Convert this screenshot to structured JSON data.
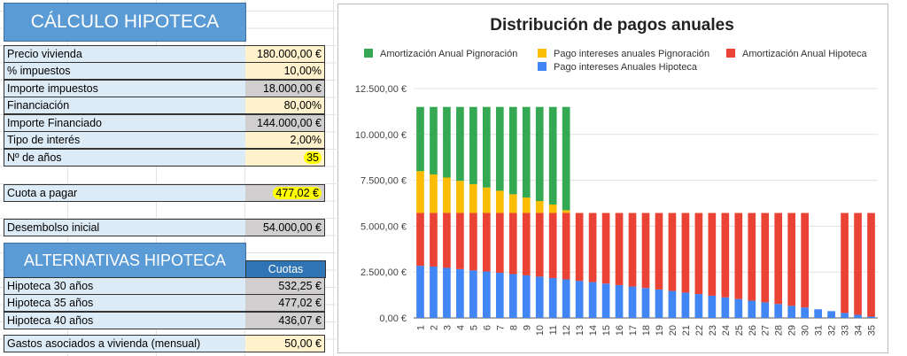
{
  "sheet": {
    "title": "CÁLCULO HIPOTECA",
    "rows": [
      {
        "label": "Precio vivienda",
        "value": "180.000,00 €",
        "kind": "input"
      },
      {
        "label": "% impuestos",
        "value": "10,00%",
        "kind": "input"
      },
      {
        "label": "Importe impuestos",
        "value": "18.000,00 €",
        "kind": "calc"
      },
      {
        "label": "Financiación",
        "value": "80,00%",
        "kind": "input"
      },
      {
        "label": "Importe Financiado",
        "value": "144.000,00 €",
        "kind": "calc"
      },
      {
        "label": "Tipo de interés",
        "value": "2,00%",
        "kind": "input"
      },
      {
        "label": "Nº de años",
        "value": "35",
        "kind": "input"
      }
    ],
    "cuota": {
      "label": "Cuota a pagar",
      "value": "477,02 €"
    },
    "desembolso": {
      "label": "Desembolso inicial",
      "value": "54.000,00 €"
    },
    "alternativas_title": "ALTERNATIVAS HIPOTECA",
    "cuotas_header": "Cuotas",
    "alternativas": [
      {
        "label": "Hipoteca 30 años",
        "value": "532,25 €"
      },
      {
        "label": "Hipoteca 35 años",
        "value": "477,02 €"
      },
      {
        "label": "Hipoteca 40 años",
        "value": "436,07 €"
      }
    ],
    "gastos": {
      "label": "Gastos asociados a vivienda (mensual)",
      "value": "50,00 €"
    }
  },
  "colors": {
    "header_blue": "#5b9bd5",
    "label_blue": "#ddebf7",
    "input_yellow": "#fff2cc",
    "calc_gray": "#d0cece",
    "green": "#34a853",
    "yellow": "#fbbc04",
    "red": "#ea4335",
    "blue": "#4285f4"
  },
  "chart_data": {
    "type": "bar",
    "stacked": true,
    "title": "Distribución de pagos anuales",
    "legend": [
      "Amortización Anual Pignoración",
      "Pago intereses anuales Pignoración",
      "Amortización Anual Hipoteca",
      "Pago intereses Anuales Hipoteca"
    ],
    "yticks": [
      "0,00 €",
      "2.500,00 €",
      "5.000,00 €",
      "7.500,00 €",
      "10.000,00 €",
      "12.500,00 €"
    ],
    "ylim": [
      0,
      12500
    ],
    "categories": [
      "1",
      "2",
      "3",
      "4",
      "5",
      "6",
      "7",
      "8",
      "9",
      "10",
      "11",
      "12",
      "13",
      "14",
      "15",
      "16",
      "17",
      "18",
      "19",
      "20",
      "21",
      "22",
      "23",
      "24",
      "25",
      "26",
      "27",
      "28",
      "29",
      "30",
      "31",
      "32",
      "33",
      "34",
      "35"
    ],
    "series": [
      {
        "name": "Pago intereses Anuales Hipoteca",
        "color": "#4285f4",
        "values": [
          2840,
          2800,
          2730,
          2660,
          2590,
          2530,
          2460,
          2390,
          2320,
          2250,
          2170,
          2100,
          2020,
          1950,
          1870,
          1790,
          1710,
          1630,
          1550,
          1470,
          1380,
          1300,
          1210,
          1120,
          1030,
          940,
          850,
          760,
          660,
          570,
          470,
          370,
          270,
          170,
          70
        ]
      },
      {
        "name": "Amortización Anual Hipoteca",
        "color": "#ea4335",
        "values": [
          2880,
          2920,
          2990,
          3060,
          3130,
          3190,
          3260,
          3330,
          3400,
          3470,
          3550,
          3620,
          3700,
          3770,
          3850,
          3930,
          4010,
          4090,
          4170,
          4250,
          4340,
          4420,
          4510,
          4600,
          4690,
          4780,
          4870,
          4960,
          5060,
          5150,
          0,
          0,
          5450,
          5550,
          5650
        ]
      },
      {
        "name": "Pago intereses anuales Pignoración",
        "color": "#fbbc04",
        "values": [
          2280,
          2100,
          1930,
          1750,
          1570,
          1390,
          1210,
          1020,
          840,
          650,
          460,
          150,
          0,
          0,
          0,
          0,
          0,
          0,
          0,
          0,
          0,
          0,
          0,
          0,
          0,
          0,
          0,
          0,
          0,
          0,
          0,
          0,
          0,
          0,
          0
        ]
      },
      {
        "name": "Amortización Anual Pignoración",
        "color": "#34a853",
        "values": [
          3500,
          3680,
          3850,
          4030,
          4210,
          4390,
          4570,
          4760,
          4940,
          5130,
          5320,
          5630,
          0,
          0,
          0,
          0,
          0,
          0,
          0,
          0,
          0,
          0,
          0,
          0,
          0,
          0,
          0,
          0,
          0,
          0,
          0,
          0,
          0,
          0,
          0
        ]
      }
    ]
  }
}
